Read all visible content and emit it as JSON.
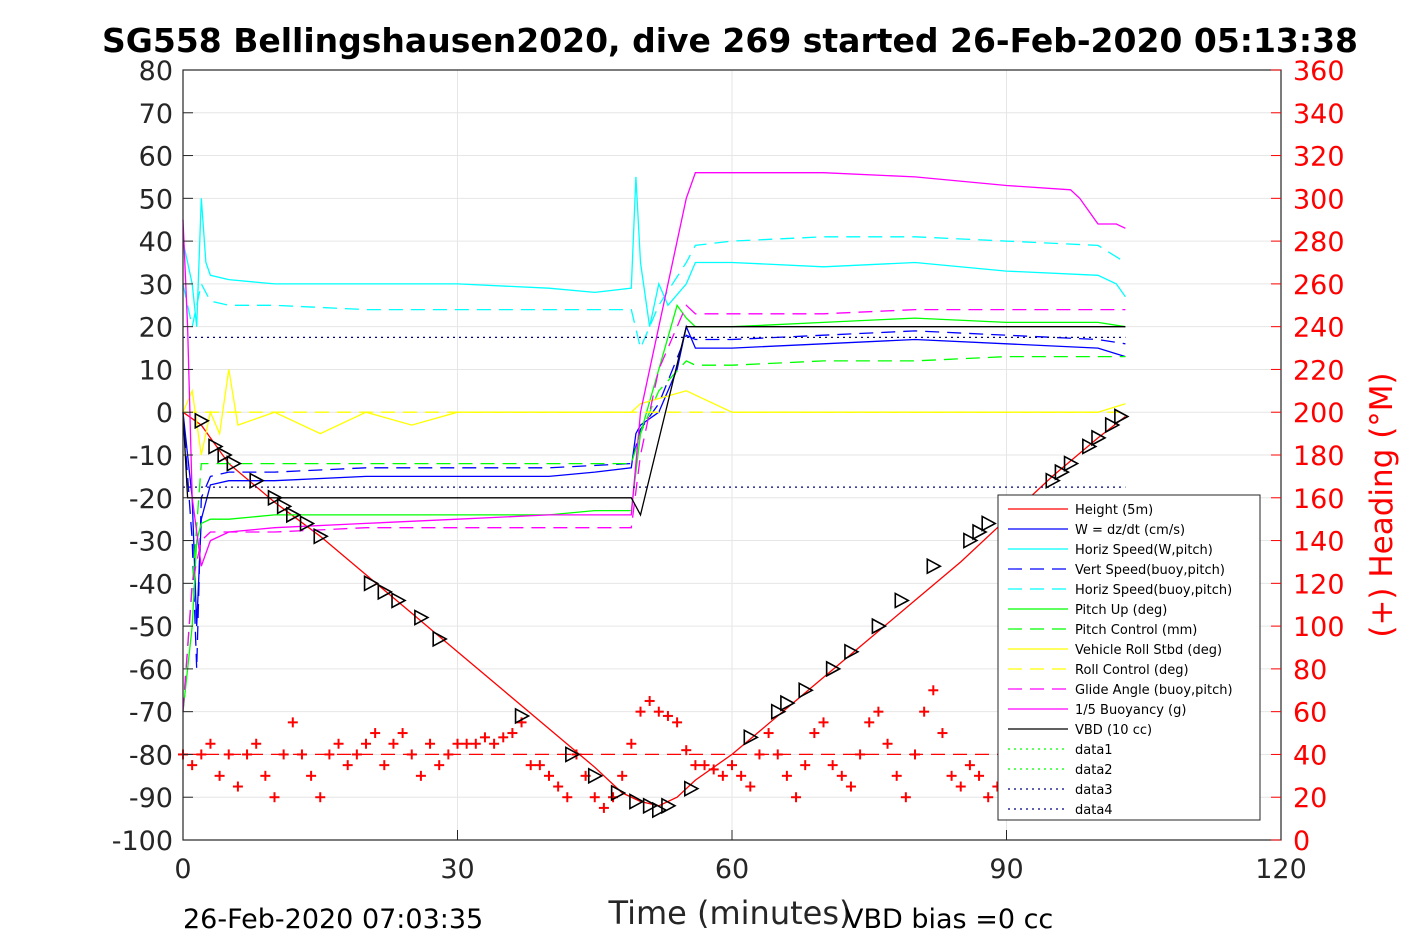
{
  "chart_data": {
    "type": "line",
    "title": "SG558 Bellingshausen2020, dive 269 started 26-Feb-2020 05:13:38",
    "xlabel": "Time (minutes)",
    "ylabel": "",
    "ylabel_right": "(+) Heading (°M)",
    "xlim": [
      0,
      120
    ],
    "ylim": [
      -100,
      80
    ],
    "ylim_right": [
      0,
      360
    ],
    "xticks": [
      "0",
      "30",
      "60",
      "90",
      "120"
    ],
    "yticks": [
      "80",
      "70",
      "60",
      "50",
      "40",
      "30",
      "20",
      "10",
      "0",
      "-10",
      "-20",
      "-30",
      "-40",
      "-50",
      "-60",
      "-70",
      "-80",
      "-90",
      "-100"
    ],
    "yticks_right": [
      "360",
      "340",
      "320",
      "300",
      "280",
      "260",
      "240",
      "220",
      "200",
      "180",
      "160",
      "140",
      "120",
      "100",
      "80",
      "60",
      "40",
      "20",
      "0"
    ],
    "grid": true,
    "legend_position": "bottom-right",
    "footer_left": "26-Feb-2020 07:03:35",
    "footer_right": "VBD bias =0 cc",
    "colors": {
      "red": "#ff0000",
      "blue": "#0000ff",
      "cyan": "#00ffff",
      "green": "#00ff00",
      "yellow": "#ffff00",
      "magenta": "#ff00ff",
      "black": "#000000",
      "navy": "#000080"
    },
    "series": [
      {
        "name": "Height (5m)",
        "color": "#ff0000",
        "style": "solid",
        "x": [
          0,
          2,
          5,
          10,
          15,
          20,
          25,
          30,
          35,
          40,
          45,
          48,
          50,
          52,
          54,
          56,
          60,
          65,
          70,
          75,
          80,
          85,
          90,
          95,
          100,
          103
        ],
        "y": [
          0,
          -3,
          -12,
          -21,
          -29,
          -38,
          -47,
          -56,
          -65,
          -74,
          -83,
          -89,
          -91,
          -92,
          -90,
          -86,
          -80,
          -71,
          -62,
          -53,
          -44,
          -35,
          -25,
          -15,
          -6,
          -1
        ]
      },
      {
        "name": "W = dz/dt (cm/s)",
        "color": "#0000ff",
        "style": "solid",
        "x": [
          0,
          1,
          1.5,
          2,
          3,
          5,
          10,
          20,
          30,
          40,
          45,
          49,
          49.5,
          50,
          52,
          54,
          55,
          56,
          60,
          70,
          80,
          90,
          100,
          103
        ],
        "y": [
          0,
          -20,
          -50,
          -25,
          -17,
          -16,
          -16,
          -15,
          -15,
          -15,
          -14,
          -13,
          -5,
          -3,
          0,
          10,
          20,
          15,
          15,
          16,
          17,
          16,
          15,
          13
        ]
      },
      {
        "name": "Horiz Speed(W,pitch)",
        "color": "#00ffff",
        "style": "solid",
        "x": [
          0,
          1,
          1.5,
          2,
          2.5,
          3,
          5,
          10,
          20,
          30,
          40,
          45,
          49,
          49.5,
          50,
          51,
          52,
          53,
          55,
          56,
          60,
          70,
          80,
          90,
          100,
          102,
          103
        ],
        "y": [
          40,
          30,
          20,
          50,
          35,
          32,
          31,
          30,
          30,
          30,
          29,
          28,
          29,
          55,
          35,
          20,
          30,
          25,
          30,
          35,
          35,
          34,
          35,
          33,
          32,
          30,
          27
        ]
      },
      {
        "name": "Vert Speed(buoy,pitch)",
        "color": "#0000ff",
        "style": "dashed",
        "x": [
          0,
          1,
          1.5,
          2,
          3,
          5,
          10,
          20,
          30,
          40,
          49,
          50,
          52,
          55,
          56,
          60,
          70,
          80,
          90,
          100,
          103
        ],
        "y": [
          0,
          -30,
          -60,
          -20,
          -15,
          -14,
          -14,
          -13,
          -13,
          -13,
          -12,
          -4,
          2,
          18,
          17,
          17,
          18,
          19,
          18,
          17,
          16
        ]
      },
      {
        "name": "Horiz Speed(buoy,pitch)",
        "color": "#00ffff",
        "style": "dashed",
        "x": [
          0,
          1,
          2,
          3,
          5,
          10,
          20,
          30,
          40,
          49,
          50,
          52,
          55,
          56,
          60,
          70,
          80,
          90,
          100,
          103
        ],
        "y": [
          30,
          20,
          30,
          26,
          25,
          25,
          24,
          24,
          24,
          24,
          15,
          25,
          35,
          39,
          40,
          41,
          41,
          40,
          39,
          35
        ]
      },
      {
        "name": "Pitch Up (deg)",
        "color": "#00ff00",
        "style": "solid",
        "x": [
          0,
          1,
          1.5,
          2,
          3,
          5,
          10,
          20,
          30,
          40,
          45,
          49,
          50,
          52,
          54,
          55,
          56,
          60,
          70,
          80,
          90,
          100,
          103
        ],
        "y": [
          -70,
          -50,
          -30,
          -26,
          -25,
          -25,
          -24,
          -24,
          -24,
          -24,
          -23,
          -23,
          -5,
          10,
          25,
          22,
          20,
          20,
          21,
          22,
          21,
          21,
          20
        ]
      },
      {
        "name": "Pitch Control (mm)",
        "color": "#00ff00",
        "style": "dashed",
        "x": [
          0,
          2,
          3,
          5,
          10,
          20,
          30,
          40,
          49,
          50,
          52,
          55,
          56,
          60,
          70,
          80,
          90,
          100,
          103
        ],
        "y": [
          -70,
          -12,
          -12,
          -12,
          -12,
          -12,
          -12,
          -12,
          -12,
          -5,
          5,
          12,
          11,
          11,
          12,
          12,
          13,
          13,
          13
        ]
      },
      {
        "name": "Vehicle Roll Stbd (deg)",
        "color": "#ffff00",
        "style": "solid",
        "x": [
          0,
          1,
          2,
          3,
          4,
          5,
          6,
          10,
          15,
          20,
          25,
          30,
          35,
          40,
          45,
          49,
          50,
          55,
          60,
          65,
          70,
          75,
          80,
          85,
          90,
          95,
          100,
          103
        ],
        "y": [
          0,
          5,
          -10,
          0,
          -5,
          10,
          -3,
          0,
          -5,
          0,
          -3,
          0,
          0,
          0,
          0,
          0,
          2,
          5,
          0,
          0,
          0,
          0,
          0,
          0,
          0,
          0,
          0,
          2
        ]
      },
      {
        "name": "Roll Control (deg)",
        "color": "#ffff00",
        "style": "dashed",
        "x": [
          0,
          5,
          10,
          20,
          30,
          40,
          49,
          50,
          55,
          60,
          70,
          80,
          90,
          100,
          103
        ],
        "y": [
          0,
          0,
          0,
          0,
          0,
          0,
          0,
          0,
          0,
          0,
          0,
          0,
          0,
          0,
          0
        ]
      },
      {
        "name": "Glide Angle (buoy,pitch)",
        "color": "#ff00ff",
        "style": "dashed",
        "x": [
          0,
          1,
          2,
          3,
          5,
          10,
          20,
          30,
          40,
          49,
          50,
          52,
          55,
          56,
          60,
          70,
          80,
          90,
          100,
          103
        ],
        "y": [
          -70,
          -40,
          -30,
          -28,
          -28,
          -28,
          -27,
          -27,
          -27,
          -27,
          -10,
          10,
          25,
          23,
          23,
          23,
          24,
          24,
          24,
          24
        ]
      },
      {
        "name": "1/5 Buoyancy (g)",
        "color": "#ff00ff",
        "style": "solid",
        "x": [
          0,
          0.5,
          1,
          2,
          3,
          5,
          10,
          20,
          30,
          40,
          49,
          50,
          52,
          55,
          56,
          60,
          70,
          80,
          90,
          97,
          98,
          100,
          102,
          103
        ],
        "y": [
          45,
          20,
          -20,
          -36,
          -30,
          -28,
          -27,
          -26,
          -25,
          -24,
          -24,
          0,
          20,
          50,
          56,
          56,
          56,
          55,
          53,
          52,
          50,
          44,
          44,
          43
        ]
      },
      {
        "name": "VBD (10 cc)",
        "color": "#000000",
        "style": "solid",
        "x": [
          0,
          0.5,
          1,
          2,
          3,
          49,
          50,
          55,
          56,
          103
        ],
        "y": [
          0,
          -20,
          -20,
          -20,
          -20,
          -20,
          -24,
          20,
          20,
          20
        ]
      },
      {
        "name": "data1",
        "color": "#00ff00",
        "style": "dotted",
        "x": [],
        "y": []
      },
      {
        "name": "data2",
        "color": "#00ff00",
        "style": "dotted",
        "x": [],
        "y": []
      },
      {
        "name": "data3",
        "color": "#000080",
        "style": "dotted",
        "x": [
          0,
          103
        ],
        "y": [
          17.5,
          17.5
        ]
      },
      {
        "name": "data4",
        "color": "#000080",
        "style": "dotted",
        "x": [
          0,
          103
        ],
        "y": [
          -17.5,
          -17.5
        ]
      }
    ],
    "extra_lines": [
      {
        "color": "#ff0000",
        "style": "dashed",
        "x": [
          0,
          103
        ],
        "y": [
          -80,
          -80
        ]
      }
    ],
    "heading_points": {
      "color": "#ff0000",
      "marker": "+",
      "x": [
        0,
        1,
        2,
        3,
        4,
        5,
        6,
        7,
        8,
        9,
        10,
        11,
        12,
        13,
        14,
        15,
        16,
        17,
        18,
        19,
        20,
        21,
        22,
        23,
        24,
        25,
        26,
        27,
        28,
        29,
        30,
        31,
        32,
        33,
        34,
        35,
        36,
        37,
        38,
        39,
        40,
        41,
        42,
        43,
        44,
        45,
        46,
        47,
        48,
        49,
        50,
        51,
        52,
        53,
        54,
        55,
        56,
        57,
        58,
        59,
        60,
        61,
        62,
        63,
        64,
        65,
        66,
        67,
        68,
        69,
        70,
        71,
        72,
        73,
        74,
        75,
        76,
        77,
        78,
        79,
        80,
        81,
        82,
        83,
        84,
        85,
        86,
        87,
        88,
        89,
        90
      ],
      "y": [
        40,
        35,
        40,
        45,
        30,
        40,
        25,
        40,
        45,
        30,
        20,
        40,
        55,
        40,
        30,
        20,
        40,
        45,
        35,
        40,
        45,
        50,
        35,
        45,
        50,
        40,
        30,
        45,
        35,
        40,
        45,
        45,
        45,
        48,
        45,
        48,
        50,
        55,
        35,
        35,
        30,
        25,
        20,
        40,
        30,
        20,
        15,
        20,
        30,
        45,
        60,
        65,
        60,
        58,
        55,
        42,
        35,
        35,
        33,
        30,
        35,
        30,
        25,
        40,
        50,
        40,
        30,
        20,
        35,
        50,
        55,
        35,
        30,
        25,
        40,
        55,
        60,
        45,
        30,
        20,
        40,
        60,
        70,
        50,
        30,
        25,
        35,
        30,
        20,
        25,
        20
      ]
    },
    "triangle_markers": {
      "color": "#000000",
      "x": [
        2,
        3.5,
        4.5,
        5.5,
        8,
        10,
        11,
        12,
        13.5,
        15,
        20.5,
        22,
        23.5,
        26,
        28,
        37,
        42.5,
        45,
        47.5,
        49.5,
        51,
        52,
        53,
        55.5,
        62,
        65,
        66,
        68,
        71,
        73,
        76,
        78.5,
        82,
        86,
        87,
        88,
        95,
        96,
        97,
        99,
        100,
        101.5,
        102.5
      ],
      "y": [
        -2,
        -8,
        -10,
        -12,
        -16,
        -20,
        -22,
        -24,
        -26,
        -29,
        -40,
        -42,
        -44,
        -48,
        -53,
        -71,
        -80,
        -85,
        -89,
        -91,
        -92,
        -93,
        -92,
        -88,
        -76,
        -70,
        -68,
        -65,
        -60,
        -56,
        -50,
        -44,
        -36,
        -30,
        -28,
        -26,
        -16,
        -14,
        -12,
        -8,
        -6,
        -3,
        -1
      ]
    }
  }
}
